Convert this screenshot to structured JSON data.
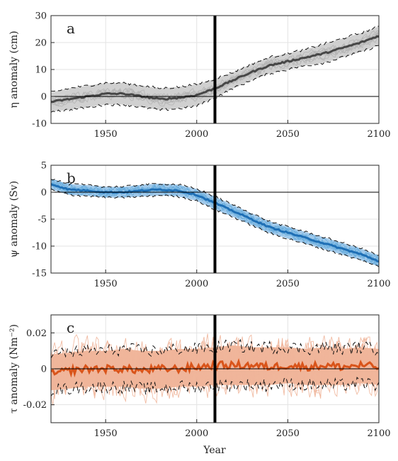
{
  "figure": {
    "xlabel": "Year"
  },
  "chart_data": [
    {
      "type": "line",
      "panel_label": "a",
      "ylabel": "η anomaly (cm)",
      "xlim": [
        1920,
        2100
      ],
      "ylim": [
        -10,
        30
      ],
      "xticks": [
        1950,
        2000,
        2050,
        2100
      ],
      "yticks": [
        -10,
        0,
        10,
        20,
        30
      ],
      "ytick_labels": [
        "-10",
        "0",
        "10",
        "20",
        "30"
      ],
      "vertical_line_x": 2010,
      "zero_line": true,
      "grid": true,
      "colors": {
        "mean": "#474747",
        "band": "#c8c8c8",
        "members": "#b4b4b4",
        "bounds": "#111111"
      },
      "x": [
        1920,
        1930,
        1940,
        1950,
        1960,
        1970,
        1980,
        1990,
        2000,
        2010,
        2020,
        2030,
        2040,
        2050,
        2060,
        2070,
        2080,
        2090,
        2100
      ],
      "series": [
        {
          "role": "mean",
          "values": [
            -2,
            -1,
            0,
            1,
            1,
            0,
            -1,
            -0.5,
            0.5,
            3,
            6,
            9,
            11.5,
            13,
            14.5,
            16,
            18,
            20,
            22.5
          ]
        },
        {
          "role": "upper",
          "values": [
            1.5,
            3,
            4,
            5,
            5,
            4,
            3,
            3.5,
            4.5,
            6.5,
            9,
            12,
            14.5,
            16,
            17.5,
            19.5,
            21.5,
            23.5,
            26
          ]
        },
        {
          "role": "lower",
          "values": [
            -5.5,
            -5,
            -4,
            -3,
            -3,
            -4,
            -5,
            -4.5,
            -3.5,
            -0.5,
            3,
            6,
            8.5,
            10,
            11.5,
            12.5,
            14.5,
            16.5,
            19
          ]
        }
      ],
      "ensemble_noise": 1.6,
      "ensemble_members": 8
    },
    {
      "type": "line",
      "panel_label": "b",
      "ylabel": "ψ anomaly (Sv)",
      "xlim": [
        1920,
        2100
      ],
      "ylim": [
        -15,
        5
      ],
      "xticks": [
        1950,
        2000,
        2050,
        2100
      ],
      "yticks": [
        -15,
        -10,
        -5,
        0,
        5
      ],
      "ytick_labels": [
        "-15",
        "-10",
        "-5",
        "0",
        "5"
      ],
      "vertical_line_x": 2010,
      "zero_line": true,
      "grid": true,
      "colors": {
        "mean": "#1f6fb5",
        "band": "#8fc0e6",
        "members": "#6aaede",
        "bounds": "#111111"
      },
      "x": [
        1920,
        1930,
        1940,
        1950,
        1960,
        1970,
        1980,
        1990,
        2000,
        2010,
        2020,
        2030,
        2040,
        2050,
        2060,
        2070,
        2080,
        2090,
        2100
      ],
      "series": [
        {
          "role": "mean",
          "values": [
            1.5,
            0.5,
            0.3,
            0,
            0,
            0.3,
            0.5,
            0.3,
            -0.5,
            -2,
            -3.5,
            -5,
            -6.5,
            -7.5,
            -8.5,
            -9.5,
            -10.5,
            -11.5,
            -12.8
          ]
        },
        {
          "role": "upper",
          "values": [
            2.5,
            1.5,
            1.3,
            1,
            1,
            1.4,
            1.6,
            1.4,
            0.6,
            -0.8,
            -2.4,
            -3.9,
            -5.4,
            -6.4,
            -7.4,
            -8.4,
            -9.4,
            -10.4,
            -11.8
          ]
        },
        {
          "role": "lower",
          "values": [
            0.5,
            -0.5,
            -0.7,
            -1,
            -1,
            -0.8,
            -0.6,
            -0.8,
            -1.6,
            -3.2,
            -4.6,
            -6.1,
            -7.6,
            -8.6,
            -9.6,
            -10.6,
            -11.6,
            -12.6,
            -13.8
          ]
        }
      ],
      "ensemble_noise": 0.7,
      "ensemble_members": 8
    },
    {
      "type": "line",
      "panel_label": "c",
      "ylabel": "τ anomaly (Nm⁻²)",
      "xlim": [
        1920,
        2100
      ],
      "ylim": [
        -0.03,
        0.03
      ],
      "xticks": [
        1950,
        2000,
        2050,
        2100
      ],
      "yticks": [
        -0.02,
        0,
        0.02
      ],
      "ytick_labels": [
        "-0.02",
        "0",
        "0.02"
      ],
      "vertical_line_x": 2010,
      "zero_line": true,
      "grid": true,
      "colors": {
        "mean": "#d9541a",
        "band": "#eda98a",
        "members": "#f0b59a",
        "bounds": "#111111"
      },
      "x": [
        1920,
        1930,
        1940,
        1950,
        1960,
        1970,
        1980,
        1990,
        2000,
        2010,
        2020,
        2030,
        2040,
        2050,
        2060,
        2070,
        2080,
        2090,
        2100
      ],
      "series": [
        {
          "role": "mean",
          "values": [
            -0.003,
            -0.001,
            0,
            0,
            0,
            -0.001,
            0,
            0,
            0.001,
            0.002,
            0.002,
            0.002,
            0.001,
            0.002,
            0.001,
            0.002,
            0.001,
            0.002,
            0.001
          ]
        },
        {
          "role": "upper",
          "values": [
            0.008,
            0.009,
            0.01,
            0.01,
            0.011,
            0.01,
            0.01,
            0.011,
            0.011,
            0.012,
            0.013,
            0.012,
            0.012,
            0.012,
            0.011,
            0.012,
            0.011,
            0.012,
            0.011
          ]
        },
        {
          "role": "lower",
          "values": [
            -0.012,
            -0.011,
            -0.01,
            -0.01,
            -0.01,
            -0.011,
            -0.011,
            -0.01,
            -0.01,
            -0.009,
            -0.009,
            -0.009,
            -0.009,
            -0.008,
            -0.009,
            -0.009,
            -0.009,
            -0.008,
            -0.009
          ]
        }
      ],
      "ensemble_noise": 0.012,
      "ensemble_members": 10
    }
  ]
}
